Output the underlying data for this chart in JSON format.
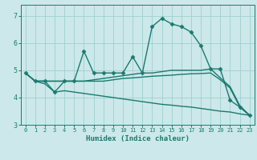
{
  "xlabel": "Humidex (Indice chaleur)",
  "xlim": [
    -0.5,
    23.5
  ],
  "ylim": [
    3.0,
    7.4
  ],
  "yticks": [
    3,
    4,
    5,
    6,
    7
  ],
  "xticks": [
    0,
    1,
    2,
    3,
    4,
    5,
    6,
    7,
    8,
    9,
    10,
    11,
    12,
    13,
    14,
    15,
    16,
    17,
    18,
    19,
    20,
    21,
    22,
    23
  ],
  "bg_color": "#cce8ea",
  "grid_color": "#9fcfcf",
  "line_color": "#1a7a6e",
  "series": [
    {
      "x": [
        0,
        1,
        2,
        3,
        4,
        5,
        6,
        7,
        8,
        9,
        10,
        11,
        12,
        13,
        14,
        15,
        16,
        17,
        18,
        19,
        20,
        21,
        22,
        23
      ],
      "y": [
        4.9,
        4.6,
        4.6,
        4.2,
        4.6,
        4.6,
        5.7,
        4.9,
        4.9,
        4.9,
        4.9,
        5.5,
        4.9,
        6.6,
        6.9,
        6.7,
        6.6,
        6.4,
        5.9,
        5.05,
        5.05,
        3.9,
        3.65,
        3.35
      ],
      "marker": "D",
      "markersize": 2.5,
      "linewidth": 1.0
    },
    {
      "x": [
        0,
        1,
        2,
        3,
        4,
        5,
        6,
        7,
        8,
        9,
        10,
        11,
        12,
        13,
        14,
        15,
        16,
        17,
        18,
        19,
        20,
        21,
        22,
        23
      ],
      "y": [
        4.9,
        4.6,
        4.6,
        4.6,
        4.6,
        4.6,
        4.6,
        4.65,
        4.7,
        4.75,
        4.8,
        4.85,
        4.9,
        4.9,
        4.95,
        5.0,
        5.0,
        5.0,
        5.0,
        5.05,
        4.72,
        4.4,
        3.7,
        3.35
      ],
      "marker": null,
      "markersize": 0,
      "linewidth": 1.0
    },
    {
      "x": [
        0,
        1,
        2,
        3,
        4,
        5,
        6,
        7,
        8,
        9,
        10,
        11,
        12,
        13,
        14,
        15,
        16,
        17,
        18,
        19,
        20,
        21,
        22,
        23
      ],
      "y": [
        4.9,
        4.6,
        4.6,
        4.6,
        4.6,
        4.6,
        4.6,
        4.6,
        4.6,
        4.65,
        4.7,
        4.72,
        4.75,
        4.78,
        4.8,
        4.82,
        4.85,
        4.87,
        4.88,
        4.9,
        4.65,
        4.35,
        3.65,
        3.35
      ],
      "marker": null,
      "markersize": 0,
      "linewidth": 1.0
    },
    {
      "x": [
        0,
        1,
        2,
        3,
        4,
        5,
        6,
        7,
        8,
        9,
        10,
        11,
        12,
        13,
        14,
        15,
        16,
        17,
        18,
        19,
        20,
        21,
        22,
        23
      ],
      "y": [
        4.9,
        4.6,
        4.5,
        4.2,
        4.25,
        4.2,
        4.15,
        4.1,
        4.05,
        4.0,
        3.95,
        3.9,
        3.85,
        3.8,
        3.75,
        3.72,
        3.68,
        3.65,
        3.6,
        3.55,
        3.5,
        3.47,
        3.4,
        3.35
      ],
      "marker": null,
      "markersize": 0,
      "linewidth": 1.0
    }
  ]
}
